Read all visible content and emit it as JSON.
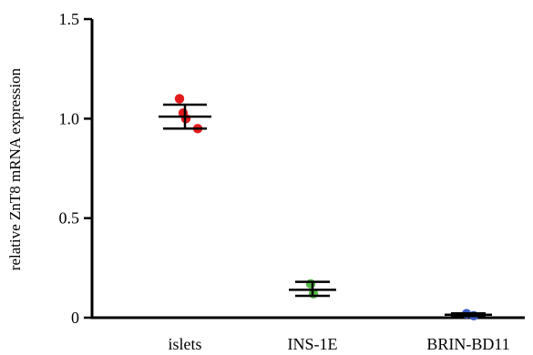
{
  "chart_data": {
    "type": "scatter",
    "title": "",
    "xlabel": "",
    "ylabel": "relative ZnT8 mRNA expression",
    "ylim": [
      0,
      1.5
    ],
    "yticks": [
      {
        "value": 0,
        "label": "0"
      },
      {
        "value": 0.5,
        "label": "0.5"
      },
      {
        "value": 1.0,
        "label": "1.0"
      },
      {
        "value": 1.5,
        "label": "1.5"
      }
    ],
    "grid": false,
    "legend": "none",
    "categories": [
      "islets",
      "INS-1E",
      "BRIN-BD11"
    ],
    "groups": [
      {
        "category": "islets",
        "color": "#e41a1c",
        "mean": 1.01,
        "error_low": 0.95,
        "error_high": 1.07,
        "points": [
          1.1,
          1.0,
          1.01,
          0.95
        ]
      },
      {
        "category": "INS-1E",
        "color": "#55b848",
        "mean": 0.14,
        "error_low": 0.11,
        "error_high": 0.18,
        "points": [
          0.17,
          0.12
        ]
      },
      {
        "category": "BRIN-BD11",
        "color": "#3b5cc4",
        "mean": 0.015,
        "error_low": 0.008,
        "error_high": 0.022,
        "points": [
          0.02,
          0.01
        ]
      }
    ]
  }
}
